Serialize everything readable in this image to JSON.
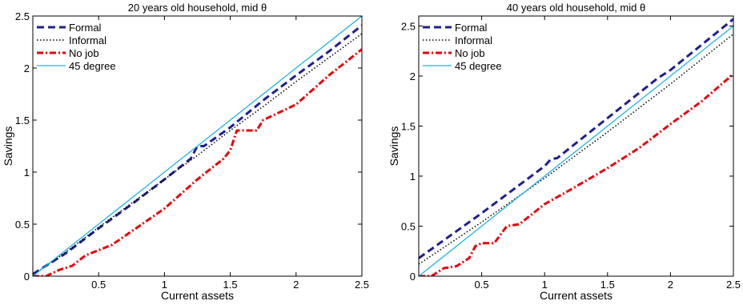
{
  "chart_data": [
    {
      "type": "line",
      "title": "20 years old household, mid θ",
      "xlabel": "Current assets",
      "ylabel": "Savings",
      "xlim": [
        0,
        2.5
      ],
      "ylim": [
        0,
        2.5
      ],
      "xticks": [
        "0.5",
        "1",
        "1.5",
        "2",
        "2.5"
      ],
      "yticks": [
        "0",
        "0.5",
        "1",
        "1.5",
        "2",
        "2.5"
      ],
      "xtick_values": [
        0.5,
        1,
        1.5,
        2,
        2.5
      ],
      "ytick_values": [
        0,
        0.5,
        1,
        1.5,
        2,
        2.5
      ],
      "grid": false,
      "legend_position": "top-left",
      "series": [
        {
          "name": "Formal",
          "color": "#1f1f8f",
          "style": "dashed",
          "x": [
            0,
            0.25,
            0.5,
            0.75,
            1.0,
            1.2,
            1.25,
            1.3,
            1.5,
            1.75,
            2.0,
            2.25,
            2.5
          ],
          "y": [
            0.02,
            0.22,
            0.46,
            0.69,
            0.93,
            1.13,
            1.25,
            1.25,
            1.43,
            1.69,
            1.93,
            2.16,
            2.41
          ]
        },
        {
          "name": "Informal",
          "color": "#000000",
          "style": "dotted",
          "x": [
            0,
            0.25,
            0.5,
            0.75,
            1.0,
            1.25,
            1.5,
            1.75,
            2.0,
            2.25,
            2.5
          ],
          "y": [
            0.01,
            0.23,
            0.47,
            0.7,
            0.93,
            1.16,
            1.4,
            1.63,
            1.87,
            2.1,
            2.33
          ]
        },
        {
          "name": "No job",
          "color": "#e8000b",
          "style": "dashdot",
          "x": [
            0,
            0.1,
            0.2,
            0.3,
            0.4,
            0.5,
            0.6,
            0.75,
            1.0,
            1.25,
            1.45,
            1.5,
            1.55,
            1.6,
            1.7,
            1.75,
            2.0,
            2.25,
            2.5
          ],
          "y": [
            0.0,
            0.0,
            0.06,
            0.1,
            0.2,
            0.25,
            0.3,
            0.43,
            0.65,
            0.93,
            1.13,
            1.21,
            1.4,
            1.4,
            1.4,
            1.5,
            1.65,
            1.93,
            2.18
          ]
        },
        {
          "name": "45 degree",
          "color": "#1fb3e6",
          "style": "solid",
          "x": [
            0,
            2.5
          ],
          "y": [
            0,
            2.5
          ]
        }
      ]
    },
    {
      "type": "line",
      "title": "40 years old household, mid θ",
      "xlabel": "Current assets",
      "ylabel": "Savings",
      "xlim": [
        0,
        2.5
      ],
      "ylim": [
        0,
        2.6
      ],
      "xticks": [
        "0.5",
        "1",
        "1.5",
        "2",
        "2.5"
      ],
      "yticks": [
        "0",
        "0.5",
        "1",
        "1.5",
        "2",
        "2.5"
      ],
      "xtick_values": [
        0.5,
        1,
        1.5,
        2,
        2.5
      ],
      "ytick_values": [
        0,
        0.5,
        1,
        1.5,
        2,
        2.5
      ],
      "grid": false,
      "legend_position": "top-left",
      "series": [
        {
          "name": "Formal",
          "color": "#1f1f8f",
          "style": "dashed",
          "x": [
            0,
            0.5,
            1.0,
            1.05,
            1.1,
            1.5,
            1.9,
            2.0,
            2.5
          ],
          "y": [
            0.18,
            0.63,
            1.1,
            1.17,
            1.18,
            1.58,
            1.98,
            2.06,
            2.57
          ]
        },
        {
          "name": "Informal",
          "color": "#000000",
          "style": "dotted",
          "x": [
            0,
            0.5,
            1.0,
            1.5,
            2.0,
            2.5
          ],
          "y": [
            0.12,
            0.54,
            0.98,
            1.44,
            1.92,
            2.42
          ]
        },
        {
          "name": "No job",
          "color": "#e8000b",
          "style": "dashdot",
          "x": [
            0,
            0.1,
            0.2,
            0.3,
            0.4,
            0.45,
            0.5,
            0.55,
            0.6,
            0.7,
            0.8,
            1.0,
            1.2,
            1.5,
            1.75,
            2.0,
            2.25,
            2.5
          ],
          "y": [
            0.0,
            0.0,
            0.08,
            0.1,
            0.18,
            0.3,
            0.33,
            0.33,
            0.33,
            0.5,
            0.52,
            0.72,
            0.86,
            1.08,
            1.28,
            1.52,
            1.75,
            2.02
          ]
        },
        {
          "name": "45 degree",
          "color": "#1fb3e6",
          "style": "solid",
          "x": [
            0,
            2.5
          ],
          "y": [
            0,
            2.5
          ]
        }
      ]
    }
  ]
}
